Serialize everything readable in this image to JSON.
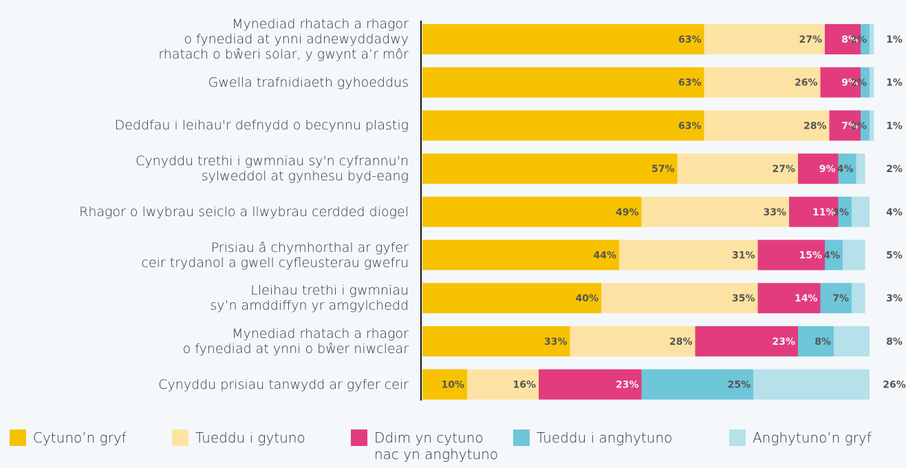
{
  "chart_data": {
    "type": "stacked-bar-horizontal",
    "categories": [
      "Mynediad rhatach a rhagor\no fynediad at ynni adnewyddadwy\nrhatach o bŵeri solar, y gwynt a’r môr",
      "Gwella trafnidiaeth gyhoeddus",
      "Deddfau i leihau'r defnydd o becynnu plastig",
      "Cynyddu trethi i gwmnïau sy'n cyfrannu'n\nsylweddol at gynhesu byd-eang",
      "Rhagor o lwybrau seiclo a llwybrau cerdded diogel",
      "Prisiau â chymhorthal ar gyfer\nceir trydanol a gwell cyfleusterau  gwefru",
      "Lleihau trethi i gwmnïau\nsy’n amddiffyn yr amgylchedd",
      "Mynediad rhatach a rhagor\no fynediad at ynni o bŵer niwclear",
      "Cynyddu prisiau tanwydd ar gyfer ceir"
    ],
    "series": [
      {
        "name": "Cytuno’n gryf",
        "color": "#f7c200",
        "values": [
          63,
          63,
          63,
          57,
          49,
          44,
          40,
          33,
          10
        ],
        "value_labels": [
          "63%",
          "63%",
          "63%",
          "57%",
          "49%",
          "44%",
          "40%",
          "33%",
          "10%"
        ]
      },
      {
        "name": "Tueddu i gytuno",
        "color": "#fde3a3",
        "values": [
          27,
          26,
          28,
          27,
          33,
          31,
          35,
          28,
          16
        ],
        "value_labels": [
          "27%",
          "26%",
          "28%",
          "27%",
          "33%",
          "31%",
          "35%",
          "28%",
          "16%"
        ]
      },
      {
        "name": "Ddim yn cytuno\nnac yn anghytuno",
        "color": "#e23c7e",
        "values": [
          8,
          9,
          7,
          9,
          11,
          15,
          14,
          23,
          23
        ],
        "value_labels": [
          "8%",
          "9%",
          "7%",
          "9%",
          "11%",
          "15%",
          "14%",
          "23%",
          "23%"
        ]
      },
      {
        "name": "Tueddu i anghytuno",
        "color": "#6ec6d9",
        "values": [
          2,
          2,
          2,
          4,
          3,
          4,
          7,
          8,
          25
        ],
        "value_labels": [
          "2%",
          "2%",
          "2%",
          "4%",
          "3%",
          "4%",
          "7%",
          "8%",
          "25%"
        ]
      },
      {
        "name": "Anghytuno’n gryf",
        "color": "#b6e0ea",
        "values": [
          1,
          1,
          1,
          2,
          4,
          5,
          3,
          8,
          26
        ],
        "value_labels": [
          "1%",
          "1%",
          "1%",
          "2%",
          "4%",
          "5%",
          "3%",
          "8%",
          "26%"
        ]
      }
    ]
  }
}
